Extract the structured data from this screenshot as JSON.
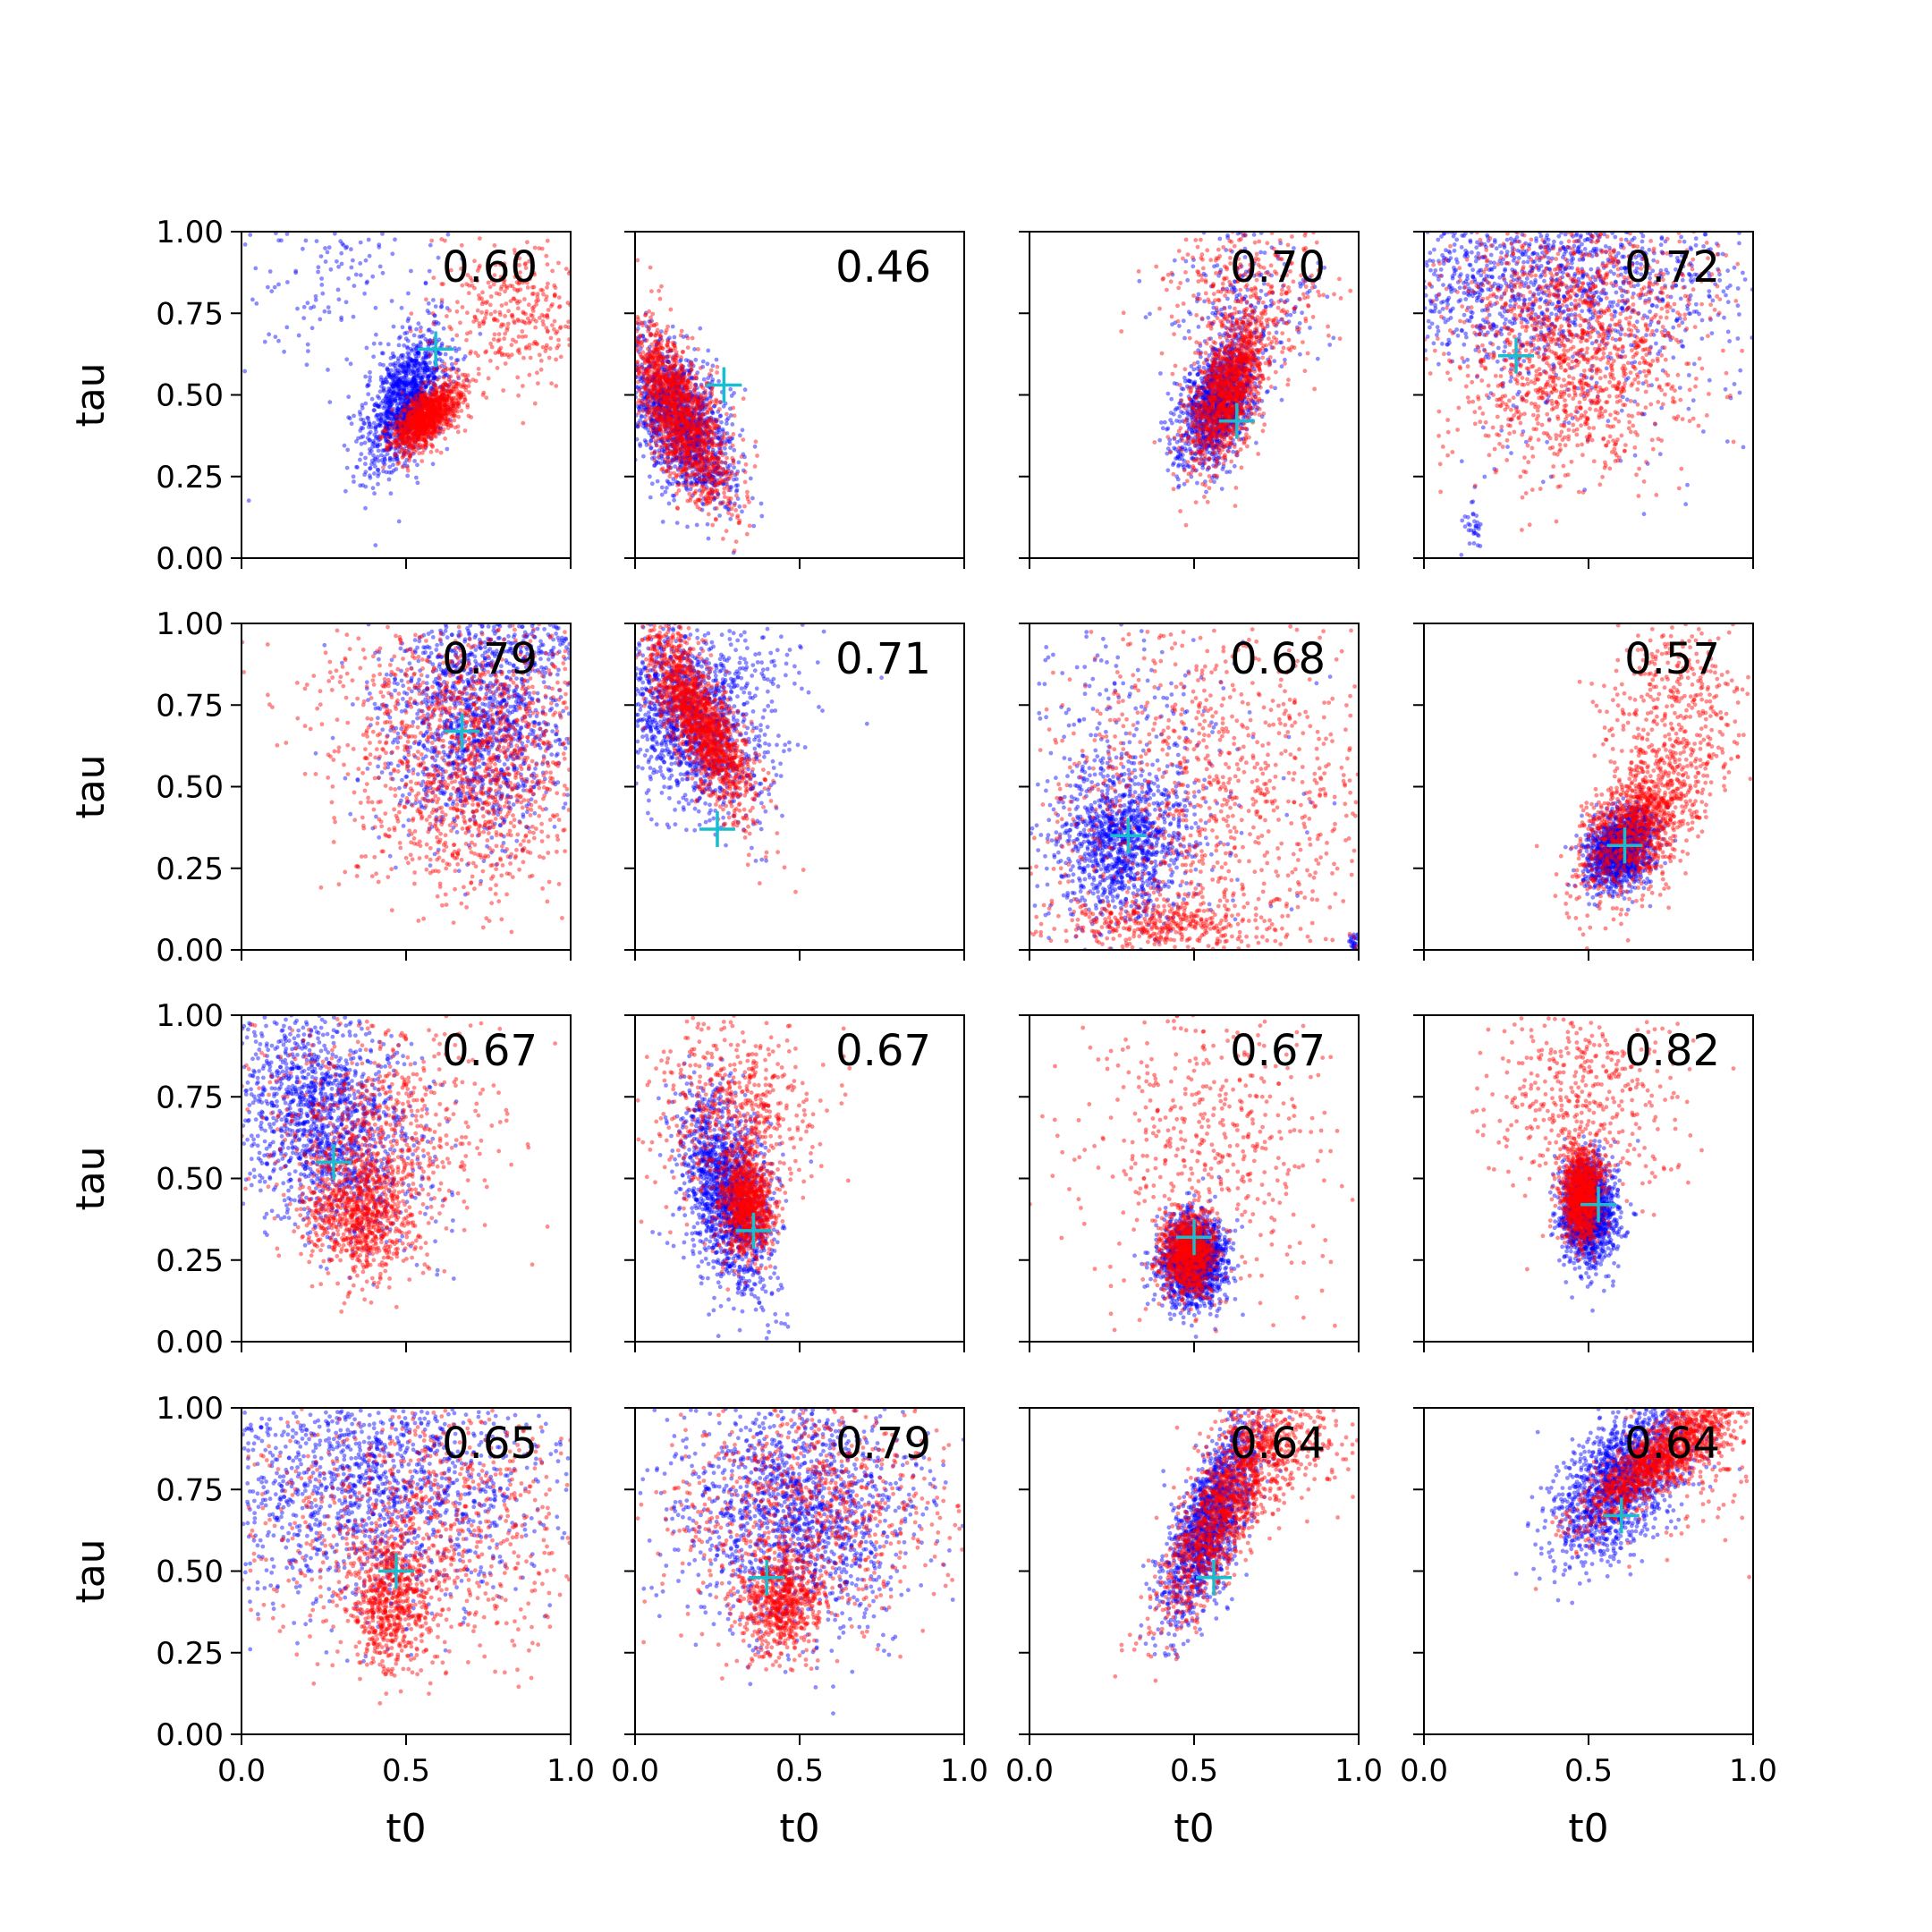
{
  "chart_data": {
    "type": "scatter",
    "layout": "4x4 grid of scatter panels",
    "xlabel": "t0",
    "ylabel": "tau",
    "xlim": [
      0.0,
      1.0
    ],
    "ylim": [
      0.0,
      1.0
    ],
    "xticks": [
      "0.0",
      "0.5",
      "1.0"
    ],
    "yticks": [
      "0.00",
      "0.25",
      "0.50",
      "0.75",
      "1.00"
    ],
    "colors": {
      "series_a": "#0000ff",
      "series_b": "#ff0000",
      "marker": "#17becf"
    },
    "points_per_series_per_panel": 1500,
    "panels": [
      {
        "label": "0.60",
        "marker": [
          0.59,
          0.64
        ],
        "blue": [
          [
            0.5,
            0.48,
            0.06,
            0.1,
            0.5,
            0.85
          ],
          [
            0.3,
            0.9,
            0.2,
            0.2,
            0.0,
            0.15
          ]
        ],
        "red": [
          [
            0.56,
            0.43,
            0.05,
            0.05,
            0.65,
            0.75
          ],
          [
            0.82,
            0.75,
            0.12,
            0.12,
            0.0,
            0.25
          ]
        ]
      },
      {
        "label": "0.46",
        "marker": [
          0.27,
          0.53
        ],
        "blue": [
          [
            0.14,
            0.42,
            0.08,
            0.12,
            -0.55,
            1.0
          ]
        ],
        "red": [
          [
            0.14,
            0.44,
            0.08,
            0.14,
            -0.7,
            1.0
          ]
        ]
      },
      {
        "label": "0.70",
        "marker": [
          0.63,
          0.42
        ],
        "blue": [
          [
            0.57,
            0.48,
            0.06,
            0.1,
            0.45,
            0.85
          ],
          [
            0.65,
            0.8,
            0.12,
            0.12,
            0.0,
            0.15
          ]
        ],
        "red": [
          [
            0.6,
            0.5,
            0.06,
            0.11,
            0.55,
            0.8
          ],
          [
            0.66,
            0.82,
            0.12,
            0.12,
            0.0,
            0.2
          ]
        ]
      },
      {
        "label": "0.72",
        "marker": [
          0.28,
          0.62
        ],
        "blue": [
          [
            0.35,
            0.85,
            0.3,
            0.14,
            0.0,
            0.9
          ],
          [
            0.15,
            0.1,
            0.02,
            0.04,
            0.0,
            0.02
          ],
          [
            0.5,
            0.6,
            0.3,
            0.25,
            0.0,
            0.08
          ]
        ],
        "red": [
          [
            0.45,
            0.62,
            0.18,
            0.18,
            0.0,
            0.85
          ],
          [
            0.5,
            0.9,
            0.25,
            0.1,
            0.0,
            0.15
          ]
        ]
      },
      {
        "label": "0.79",
        "marker": [
          0.67,
          0.67
        ],
        "blue": [
          [
            0.72,
            0.7,
            0.15,
            0.17,
            0.0,
            0.9
          ],
          [
            0.85,
            0.95,
            0.15,
            0.06,
            0.0,
            0.1
          ]
        ],
        "red": [
          [
            0.7,
            0.55,
            0.18,
            0.2,
            0.0,
            0.8
          ],
          [
            0.6,
            0.8,
            0.25,
            0.15,
            0.0,
            0.2
          ]
        ]
      },
      {
        "label": "0.71",
        "marker": [
          0.25,
          0.37
        ],
        "blue": [
          [
            0.16,
            0.7,
            0.12,
            0.14,
            -0.4,
            0.9
          ],
          [
            0.3,
            0.85,
            0.12,
            0.1,
            0.0,
            0.1
          ]
        ],
        "red": [
          [
            0.2,
            0.7,
            0.08,
            0.14,
            -0.78,
            1.0
          ]
        ]
      },
      {
        "label": "0.68",
        "marker": [
          0.3,
          0.35
        ],
        "blue": [
          [
            0.28,
            0.33,
            0.1,
            0.12,
            0.0,
            0.75
          ],
          [
            0.3,
            0.6,
            0.25,
            0.25,
            0.0,
            0.22
          ],
          [
            0.99,
            0.02,
            0.01,
            0.02,
            0.0,
            0.03
          ]
        ],
        "red": [
          [
            0.55,
            0.45,
            0.3,
            0.3,
            0.0,
            0.75
          ],
          [
            0.4,
            0.08,
            0.15,
            0.04,
            0.0,
            0.25
          ]
        ]
      },
      {
        "label": "0.57",
        "marker": [
          0.61,
          0.32
        ],
        "blue": [
          [
            0.6,
            0.31,
            0.05,
            0.06,
            0.3,
            1.0
          ]
        ],
        "red": [
          [
            0.65,
            0.38,
            0.09,
            0.12,
            0.5,
            0.75
          ],
          [
            0.78,
            0.75,
            0.12,
            0.15,
            0.0,
            0.25
          ]
        ]
      },
      {
        "label": "0.67",
        "marker": [
          0.28,
          0.55
        ],
        "blue": [
          [
            0.25,
            0.68,
            0.14,
            0.18,
            -0.3,
            1.0
          ]
        ],
        "red": [
          [
            0.36,
            0.4,
            0.08,
            0.1,
            0.0,
            0.55
          ],
          [
            0.4,
            0.65,
            0.18,
            0.18,
            0.0,
            0.45
          ]
        ]
      },
      {
        "label": "0.67",
        "marker": [
          0.36,
          0.34
        ],
        "blue": [
          [
            0.28,
            0.45,
            0.07,
            0.15,
            -0.4,
            1.0
          ]
        ],
        "red": [
          [
            0.34,
            0.42,
            0.04,
            0.08,
            0.0,
            0.6
          ],
          [
            0.3,
            0.7,
            0.12,
            0.15,
            0.0,
            0.4
          ]
        ]
      },
      {
        "label": "0.67",
        "marker": [
          0.5,
          0.32
        ],
        "blue": [
          [
            0.5,
            0.25,
            0.05,
            0.07,
            0.0,
            1.0
          ]
        ],
        "red": [
          [
            0.48,
            0.27,
            0.04,
            0.06,
            0.0,
            0.65
          ],
          [
            0.55,
            0.6,
            0.2,
            0.25,
            0.0,
            0.35
          ]
        ]
      },
      {
        "label": "0.82",
        "marker": [
          0.53,
          0.42
        ],
        "blue": [
          [
            0.5,
            0.4,
            0.04,
            0.08,
            0.0,
            1.0
          ]
        ],
        "red": [
          [
            0.48,
            0.45,
            0.03,
            0.07,
            0.0,
            0.7
          ],
          [
            0.5,
            0.75,
            0.15,
            0.15,
            0.0,
            0.3
          ]
        ]
      },
      {
        "label": "0.65",
        "marker": [
          0.47,
          0.5
        ],
        "blue": [
          [
            0.4,
            0.75,
            0.25,
            0.18,
            0.0,
            1.0
          ]
        ],
        "red": [
          [
            0.45,
            0.4,
            0.06,
            0.1,
            0.0,
            0.4
          ],
          [
            0.55,
            0.65,
            0.25,
            0.2,
            0.0,
            0.6
          ]
        ]
      },
      {
        "label": "0.79",
        "marker": [
          0.4,
          0.48
        ],
        "blue": [
          [
            0.5,
            0.68,
            0.18,
            0.18,
            0.0,
            1.0
          ]
        ],
        "red": [
          [
            0.45,
            0.4,
            0.06,
            0.08,
            0.0,
            0.45
          ],
          [
            0.52,
            0.7,
            0.22,
            0.18,
            0.0,
            0.55
          ]
        ]
      },
      {
        "label": "0.64",
        "marker": [
          0.56,
          0.48
        ],
        "blue": [
          [
            0.55,
            0.65,
            0.07,
            0.15,
            0.7,
            1.0
          ]
        ],
        "red": [
          [
            0.6,
            0.7,
            0.1,
            0.17,
            0.82,
            0.8
          ],
          [
            0.75,
            0.88,
            0.12,
            0.08,
            0.0,
            0.2
          ]
        ]
      },
      {
        "label": "0.64",
        "marker": [
          0.6,
          0.67
        ],
        "blue": [
          [
            0.6,
            0.78,
            0.1,
            0.12,
            0.5,
            1.0
          ]
        ],
        "red": [
          [
            0.72,
            0.85,
            0.12,
            0.1,
            0.85,
            0.85
          ],
          [
            0.88,
            0.9,
            0.12,
            0.15,
            0.0,
            0.15
          ]
        ]
      }
    ]
  }
}
